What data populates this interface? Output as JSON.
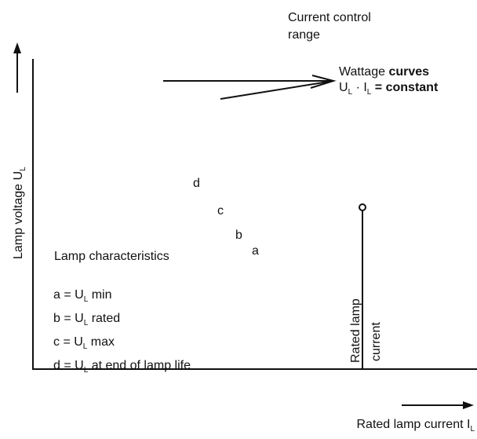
{
  "range_label": [
    [
      {
        "text": "Current control"
      }
    ],
    [
      {
        "text": "range"
      }
    ]
  ],
  "wattage_label": [
    [
      {
        "text": "Wattage "
      },
      {
        "text": "curves",
        "style": "bold"
      }
    ],
    [
      {
        "text": "U"
      },
      {
        "text": "L",
        "style": "sub"
      },
      {
        "text": " · I"
      },
      {
        "text": "L",
        "style": "sub"
      },
      {
        "text": " = constant",
        "style": "bold"
      }
    ]
  ],
  "y_axis_label": [
    {
      "text": "Lamp voltage U"
    },
    {
      "text": "L",
      "style": "sub"
    }
  ],
  "x_axis_label": [
    {
      "text": "Rated lamp current I"
    },
    {
      "text": "L",
      "style": "sub"
    }
  ],
  "curve_letters": [
    "d",
    "c",
    "b",
    "a"
  ],
  "legend_title": [
    {
      "text": "Lamp characteristics"
    }
  ],
  "legend_items": [
    [
      {
        "text": "a = U"
      },
      {
        "text": "L",
        "style": "sub"
      },
      {
        "text": " min"
      }
    ],
    [
      {
        "text": "b = U"
      },
      {
        "text": "L",
        "style": "sub"
      },
      {
        "text": " rated"
      }
    ],
    [
      {
        "text": "c = U"
      },
      {
        "text": "L",
        "style": "sub"
      },
      {
        "text": " max"
      }
    ],
    [
      {
        "text": "d = U"
      },
      {
        "text": "L",
        "style": "sub"
      },
      {
        "text": " at end of lamp life"
      }
    ]
  ],
  "rated_current_label": [
    [
      {
        "text": "Rated lamp"
      }
    ],
    [
      {
        "text": "current"
      }
    ]
  ]
}
